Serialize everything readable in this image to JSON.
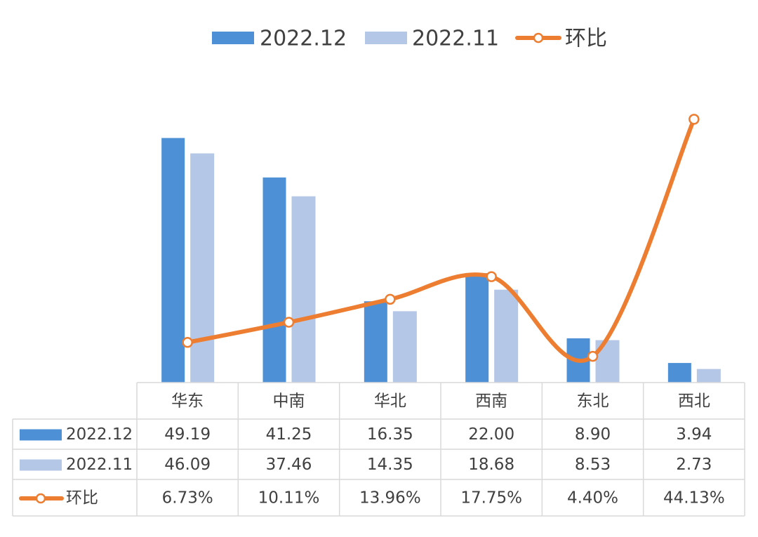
{
  "chart_data": {
    "type": "bar-line-table",
    "categories": [
      "华东",
      "中南",
      "华北",
      "西南",
      "东北",
      "西北"
    ],
    "series": [
      {
        "name": "2022.12",
        "color": "#4e90d6",
        "values": [
          49.19,
          41.25,
          16.35,
          22,
          8.9,
          3.94
        ],
        "value_labels": [
          "49.19",
          "41.25",
          "16.35",
          "22.00",
          "8.90",
          "3.94"
        ]
      },
      {
        "name": "2022.11",
        "color": "#b4c7e7",
        "values": [
          46.09,
          37.46,
          14.35,
          18.68,
          8.53,
          2.73
        ],
        "value_labels": [
          "46.09",
          "37.46",
          "14.35",
          "18.68",
          "8.53",
          "2.73"
        ]
      },
      {
        "name": "环比",
        "color": "#ed7d31",
        "axis": "y2",
        "values": [
          6.73,
          10.11,
          13.96,
          17.75,
          4.4,
          44.13
        ],
        "value_labels": [
          "6.73%",
          "10.11%",
          "13.96%",
          "17.75%",
          "4.40%",
          "44.13%"
        ]
      }
    ],
    "ylim": [
      0,
      60
    ],
    "y2lim": [
      0,
      50
    ],
    "grid": false,
    "legend": "top"
  }
}
